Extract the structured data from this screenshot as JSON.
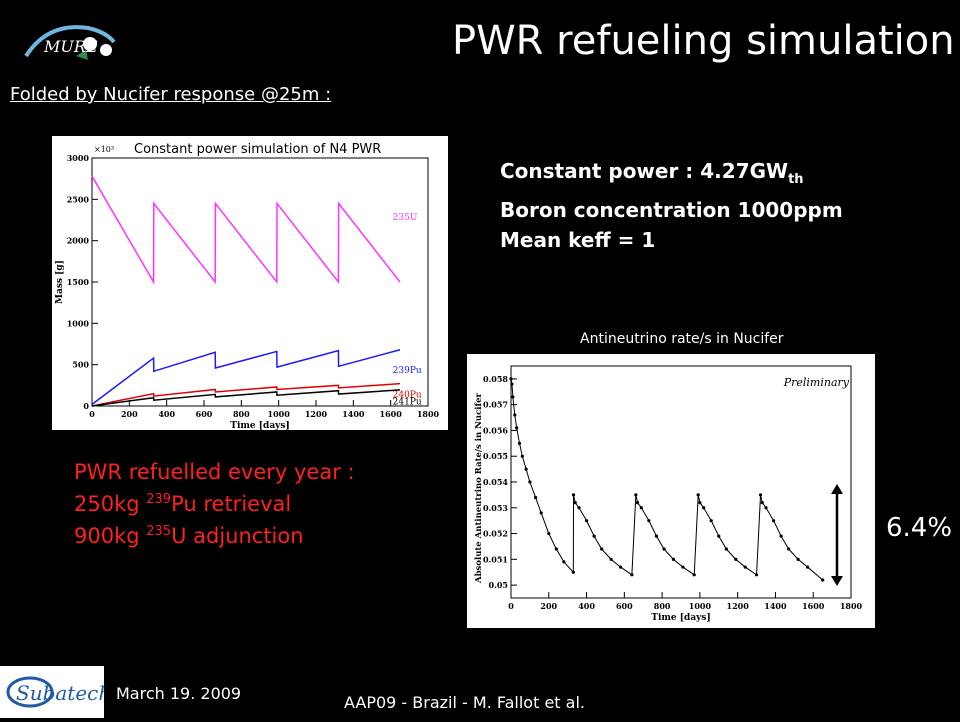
{
  "title": "PWR refueling simulation",
  "folded_label": "Folded by Nucifer response @25m :",
  "params": {
    "line1_prefix": "Constant power : 4.27GW",
    "line1_sub": "th",
    "line2": "Boron concentration 1000ppm",
    "line3": "Mean keff = 1"
  },
  "refuel": {
    "line1": "PWR refuelled every year :",
    "line2_a": "250kg ",
    "line2_sup": "239",
    "line2_b": "Pu retrieval",
    "line3_a": "900kg ",
    "line3_sup": "235",
    "line3_b": "U  adjunction"
  },
  "variation_label": "6.4%",
  "footer": {
    "date": "March 19. 2009",
    "credit": "AAP09 - Brazil - M. Fallot et al."
  },
  "logos": {
    "left_top": "MURE",
    "bottom_left": "Subatech"
  },
  "colors": {
    "u235": "#ff33ff",
    "pu239": "#1a1aff",
    "pu240": "#e00000",
    "pu241": "#000000",
    "accent_red": "#ff2020"
  },
  "chart_data": [
    {
      "type": "line",
      "title": "Constant power simulation of N4 PWR",
      "xlabel": "Time [days]",
      "ylabel": "Mass [g]",
      "y_multiplier_label": "×10³",
      "xlim": [
        0,
        1800
      ],
      "ylim": [
        0,
        3000
      ],
      "x_ticks": [
        0,
        200,
        400,
        600,
        800,
        1000,
        1200,
        1400,
        1600,
        1800
      ],
      "y_ticks": [
        0,
        500,
        1000,
        1500,
        2000,
        2500,
        3000
      ],
      "series": [
        {
          "name": "235U",
          "color": "#ff33ff",
          "x": [
            0,
            330,
            331,
            660,
            661,
            990,
            991,
            1320,
            1321,
            1650
          ],
          "y": [
            2780,
            1500,
            2450,
            1500,
            2450,
            1500,
            2450,
            1500,
            2450,
            1500
          ]
        },
        {
          "name": "239Pu",
          "color": "#1a1aff",
          "x": [
            0,
            330,
            331,
            660,
            661,
            990,
            991,
            1320,
            1321,
            1650
          ],
          "y": [
            20,
            580,
            420,
            650,
            460,
            660,
            470,
            670,
            480,
            680
          ]
        },
        {
          "name": "240Pu",
          "color": "#e00000",
          "x": [
            0,
            330,
            331,
            660,
            661,
            990,
            991,
            1320,
            1321,
            1650
          ],
          "y": [
            0,
            150,
            120,
            200,
            170,
            230,
            200,
            250,
            220,
            270
          ]
        },
        {
          "name": "241Pu",
          "color": "#000000",
          "x": [
            0,
            330,
            331,
            660,
            661,
            990,
            991,
            1320,
            1321,
            1650
          ],
          "y": [
            0,
            100,
            70,
            140,
            110,
            170,
            130,
            185,
            145,
            195
          ]
        }
      ]
    },
    {
      "type": "line",
      "title": "Antineutrino rate/s in Nucifer",
      "annotation": "Preliminary",
      "xlabel": "Time [days]",
      "ylabel": "Absolute Antineutrino Rate/s in Nucifer",
      "xlim": [
        0,
        1800
      ],
      "ylim": [
        0.0495,
        0.0585
      ],
      "x_ticks": [
        0,
        200,
        400,
        600,
        800,
        1000,
        1200,
        1400,
        1600,
        1800
      ],
      "y_ticks": [
        0.05,
        0.051,
        0.052,
        0.053,
        0.054,
        0.055,
        0.056,
        0.057,
        0.058
      ],
      "series": [
        {
          "name": "rate",
          "color": "#000000",
          "x": [
            0,
            5,
            10,
            20,
            30,
            45,
            60,
            80,
            100,
            130,
            160,
            200,
            240,
            280,
            330,
            331,
            340,
            360,
            400,
            440,
            480,
            530,
            580,
            640,
            661,
            670,
            690,
            730,
            770,
            810,
            860,
            910,
            970,
            991,
            1000,
            1020,
            1060,
            1100,
            1140,
            1190,
            1240,
            1300,
            1321,
            1330,
            1350,
            1390,
            1430,
            1470,
            1520,
            1570,
            1650
          ],
          "y": [
            0.058,
            0.0578,
            0.0573,
            0.0566,
            0.0561,
            0.0555,
            0.055,
            0.0545,
            0.054,
            0.0534,
            0.0528,
            0.052,
            0.0514,
            0.0509,
            0.0505,
            0.0535,
            0.0532,
            0.053,
            0.0525,
            0.0519,
            0.0514,
            0.051,
            0.0507,
            0.0504,
            0.0535,
            0.0532,
            0.053,
            0.0525,
            0.0519,
            0.0514,
            0.051,
            0.0507,
            0.0504,
            0.0535,
            0.0532,
            0.053,
            0.0525,
            0.0519,
            0.0514,
            0.051,
            0.0507,
            0.0504,
            0.0535,
            0.0532,
            0.053,
            0.0525,
            0.0519,
            0.0514,
            0.051,
            0.0507,
            0.0502
          ]
        }
      ]
    }
  ]
}
